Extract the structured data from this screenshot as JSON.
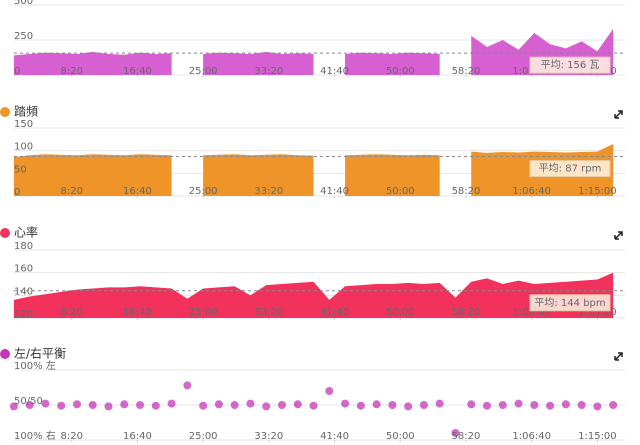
{
  "chart_data": [
    {
      "type": "area",
      "color": "#d65fd2",
      "x": [
        60,
        180,
        300,
        420,
        540,
        660,
        780,
        900,
        1020,
        1140,
        1260,
        1380,
        1500,
        1620,
        1740,
        1860,
        1980,
        2100,
        2220,
        2340,
        2460,
        2580,
        2700,
        2820,
        2940,
        3060,
        3180,
        3300,
        3420,
        3540,
        3660,
        3780,
        3900,
        4020,
        4140,
        4260,
        4380,
        4500,
        4620
      ],
      "values": [
        140,
        150,
        160,
        155,
        150,
        165,
        150,
        145,
        160,
        150,
        155,
        null,
        150,
        160,
        155,
        150,
        165,
        150,
        155,
        150,
        null,
        150,
        160,
        155,
        150,
        160,
        155,
        150,
        null,
        280,
        200,
        250,
        180,
        300,
        220,
        190,
        240,
        170,
        330
      ],
      "xlim": [
        0,
        4710
      ],
      "ylim": [
        0,
        500
      ],
      "yticks": [
        0,
        250,
        500
      ],
      "xticks": [
        {
          "value": 500,
          "label": "8:20"
        },
        {
          "value": 1000,
          "label": "16:40"
        },
        {
          "value": 1500,
          "label": "25:00"
        },
        {
          "value": 2000,
          "label": "33:20"
        },
        {
          "value": 2500,
          "label": "41:40"
        },
        {
          "value": 3000,
          "label": "50:00"
        },
        {
          "value": 3500,
          "label": "58:20"
        },
        {
          "value": 4000,
          "label": "1:06:40"
        },
        {
          "value": 4500,
          "label": "1:15:00"
        }
      ],
      "average": 156,
      "average_label": "平均: 156 瓦",
      "grid": true
    },
    {
      "type": "area",
      "title": "踏頻",
      "color": "#ee9428",
      "x": [
        60,
        180,
        300,
        420,
        540,
        660,
        780,
        900,
        1020,
        1140,
        1260,
        1380,
        1500,
        1620,
        1740,
        1860,
        1980,
        2100,
        2220,
        2340,
        2460,
        2580,
        2700,
        2820,
        2940,
        3060,
        3180,
        3300,
        3420,
        3540,
        3660,
        3780,
        3900,
        4020,
        4140,
        4260,
        4380,
        4500,
        4620
      ],
      "values": [
        86,
        90,
        92,
        91,
        90,
        92,
        91,
        90,
        92,
        91,
        90,
        null,
        90,
        91,
        92,
        90,
        91,
        92,
        90,
        89,
        null,
        90,
        91,
        92,
        91,
        90,
        91,
        90,
        null,
        98,
        95,
        97,
        96,
        98,
        97,
        96,
        97,
        98,
        115
      ],
      "xlim": [
        0,
        4710
      ],
      "ylim": [
        0,
        150
      ],
      "yticks": [
        0,
        50,
        100,
        150
      ],
      "xticks": [
        {
          "value": 500,
          "label": "8:20"
        },
        {
          "value": 1000,
          "label": "16:40"
        },
        {
          "value": 1500,
          "label": "25:00"
        },
        {
          "value": 2000,
          "label": "33:20"
        },
        {
          "value": 2500,
          "label": "41:40"
        },
        {
          "value": 3000,
          "label": "50:00"
        },
        {
          "value": 3500,
          "label": "58:20"
        },
        {
          "value": 4000,
          "label": "1:06:40"
        },
        {
          "value": 4500,
          "label": "1:15:00"
        }
      ],
      "average": 87,
      "average_label": "平均:  87 rpm",
      "grid": true
    },
    {
      "type": "area",
      "title": "心率",
      "color": "#f2315c",
      "x": [
        60,
        180,
        300,
        420,
        540,
        660,
        780,
        900,
        1020,
        1140,
        1260,
        1380,
        1500,
        1620,
        1740,
        1860,
        1980,
        2100,
        2220,
        2340,
        2460,
        2580,
        2700,
        2820,
        2940,
        3060,
        3180,
        3300,
        3420,
        3540,
        3660,
        3780,
        3900,
        4020,
        4140,
        4260,
        4380,
        4500,
        4620
      ],
      "values": [
        136,
        139,
        141,
        143,
        145,
        146,
        147,
        147,
        148,
        147,
        146,
        137,
        146,
        147,
        148,
        140,
        149,
        150,
        151,
        152,
        136,
        148,
        149,
        150,
        150,
        151,
        150,
        151,
        138,
        152,
        155,
        150,
        153,
        150,
        151,
        152,
        153,
        154,
        160
      ],
      "xlim": [
        0,
        4710
      ],
      "ylim": [
        120,
        180
      ],
      "yticks": [
        120,
        140,
        160,
        180
      ],
      "xticks": [
        {
          "value": 500,
          "label": "8:20"
        },
        {
          "value": 1000,
          "label": "16:40"
        },
        {
          "value": 1500,
          "label": "25:00"
        },
        {
          "value": 2000,
          "label": "33:20"
        },
        {
          "value": 2500,
          "label": "41:40"
        },
        {
          "value": 3000,
          "label": "50:00"
        },
        {
          "value": 3500,
          "label": "58:20"
        },
        {
          "value": 4000,
          "label": "1:06:40"
        },
        {
          "value": 4500,
          "label": "1:15:00"
        }
      ],
      "average": 144,
      "average_label": "平均:  144 bpm",
      "grid": true
    },
    {
      "type": "scatter",
      "title": "左/右平衡",
      "color": "#c634b8",
      "x": [
        60,
        180,
        300,
        420,
        540,
        660,
        780,
        900,
        1020,
        1140,
        1260,
        1380,
        1500,
        1620,
        1740,
        1860,
        1980,
        2100,
        2220,
        2340,
        2460,
        2580,
        2700,
        2820,
        2940,
        3060,
        3180,
        3300,
        3420,
        3540,
        3660,
        3780,
        3900,
        4020,
        4140,
        4260,
        4380,
        4500,
        4620
      ],
      "values": [
        48,
        50,
        52,
        49,
        51,
        50,
        48,
        51,
        50,
        49,
        52,
        78,
        49,
        51,
        50,
        52,
        48,
        50,
        51,
        49,
        70,
        52,
        49,
        51,
        50,
        48,
        50,
        52,
        10,
        51,
        49,
        50,
        52,
        50,
        49,
        51,
        50,
        48,
        50
      ],
      "xlim": [
        0,
        4710
      ],
      "ylim": [
        0,
        100
      ],
      "yticks": [
        {
          "value": 0,
          "label": "100% 右"
        },
        {
          "value": 50,
          "label": "50/50"
        },
        {
          "value": 100,
          "label": "100% 左"
        }
      ],
      "xticks": [
        {
          "value": 500,
          "label": "8:20"
        },
        {
          "value": 1000,
          "label": "16:40"
        },
        {
          "value": 1500,
          "label": "25:00"
        },
        {
          "value": 2000,
          "label": "33:20"
        },
        {
          "value": 2500,
          "label": "41:40"
        },
        {
          "value": 3000,
          "label": "50:00"
        },
        {
          "value": 3500,
          "label": "58:20"
        },
        {
          "value": 4000,
          "label": "1:06:40"
        },
        {
          "value": 4500,
          "label": "1:15:00"
        }
      ],
      "grid": true
    }
  ]
}
